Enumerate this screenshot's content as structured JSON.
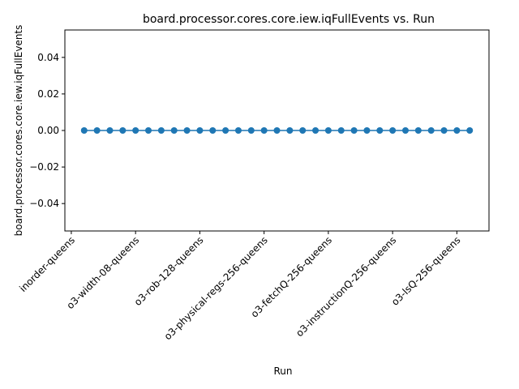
{
  "chart_data": {
    "type": "line",
    "title": "board.processor.cores.core.iew.iqFullEvents vs. Run",
    "xlabel": "Run",
    "ylabel": "board.processor.cores.core.iew.iqFullEvents",
    "ylim": [
      -0.055,
      0.055
    ],
    "yticks": [
      -0.04,
      -0.02,
      0.0,
      0.02,
      0.04
    ],
    "ytick_labels": [
      "−0.04",
      "−0.02",
      "0.00",
      "0.02",
      "0.04"
    ],
    "xlim": [
      -1.5,
      31.5
    ],
    "xticks": [
      -1,
      4,
      9,
      14,
      19,
      24,
      29
    ],
    "xtick_labels": [
      "inorder-queens",
      "o3-width-08-queens",
      "o3-rob-128-queens",
      "o3-physical-regs-256-queens",
      "o3-fetchQ-256-queens",
      "o3-instructionQ-256-queens",
      "o3-lsQ-256-queens"
    ],
    "grid": false,
    "legend": "none",
    "color": "#1f77b4",
    "x": [
      0,
      1,
      2,
      3,
      4,
      5,
      6,
      7,
      8,
      9,
      10,
      11,
      12,
      13,
      14,
      15,
      16,
      17,
      18,
      19,
      20,
      21,
      22,
      23,
      24,
      25,
      26,
      27,
      28,
      29,
      30
    ],
    "values": [
      0,
      0,
      0,
      0,
      0,
      0,
      0,
      0,
      0,
      0,
      0,
      0,
      0,
      0,
      0,
      0,
      0,
      0,
      0,
      0,
      0,
      0,
      0,
      0,
      0,
      0,
      0,
      0,
      0,
      0,
      0
    ]
  }
}
